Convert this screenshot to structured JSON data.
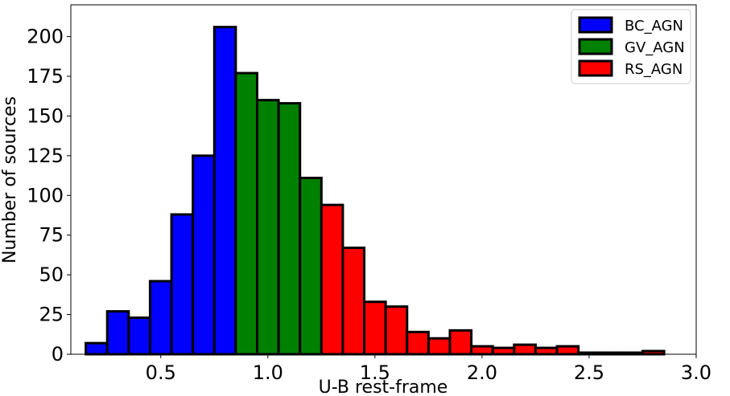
{
  "chart_data": {
    "type": "bar",
    "title": "",
    "xlabel": "U-B rest-frame",
    "ylabel": "Number of sources",
    "xlim": [
      0.08,
      3.0
    ],
    "ylim": [
      0,
      220
    ],
    "xticks": [
      0.5,
      1.0,
      1.5,
      2.0,
      2.5,
      3.0
    ],
    "xtick_labels": [
      "0.5",
      "1.0",
      "1.5",
      "2.0",
      "2.5",
      "3.0"
    ],
    "yticks": [
      0,
      25,
      50,
      75,
      100,
      125,
      150,
      175,
      200
    ],
    "ytick_labels": [
      "0",
      "25",
      "50",
      "75",
      "100",
      "125",
      "150",
      "175",
      "200"
    ],
    "grid": false,
    "legend_position": "top-right",
    "bin_width": 0.1,
    "series": [
      {
        "name": "BC_AGN",
        "color": "#0000ff",
        "bins": [
          {
            "x0": 0.15,
            "value": 7
          },
          {
            "x0": 0.25,
            "value": 27
          },
          {
            "x0": 0.35,
            "value": 23
          },
          {
            "x0": 0.45,
            "value": 46
          },
          {
            "x0": 0.55,
            "value": 88
          },
          {
            "x0": 0.65,
            "value": 125
          },
          {
            "x0": 0.75,
            "value": 206
          }
        ]
      },
      {
        "name": "GV_AGN",
        "color": "#008000",
        "bins": [
          {
            "x0": 0.85,
            "value": 177
          },
          {
            "x0": 0.95,
            "value": 160
          },
          {
            "x0": 1.05,
            "value": 158
          },
          {
            "x0": 1.15,
            "value": 111
          }
        ]
      },
      {
        "name": "RS_AGN",
        "color": "#ff0000",
        "bins": [
          {
            "x0": 1.25,
            "value": 94
          },
          {
            "x0": 1.35,
            "value": 67
          },
          {
            "x0": 1.45,
            "value": 33
          },
          {
            "x0": 1.55,
            "value": 30
          },
          {
            "x0": 1.65,
            "value": 14
          },
          {
            "x0": 1.75,
            "value": 10
          },
          {
            "x0": 1.85,
            "value": 15
          },
          {
            "x0": 1.95,
            "value": 5
          },
          {
            "x0": 2.05,
            "value": 4
          },
          {
            "x0": 2.15,
            "value": 6
          },
          {
            "x0": 2.25,
            "value": 4
          },
          {
            "x0": 2.35,
            "value": 5
          },
          {
            "x0": 2.45,
            "value": 1
          },
          {
            "x0": 2.55,
            "value": 1
          },
          {
            "x0": 2.65,
            "value": 1
          },
          {
            "x0": 2.75,
            "value": 2
          }
        ]
      }
    ]
  }
}
